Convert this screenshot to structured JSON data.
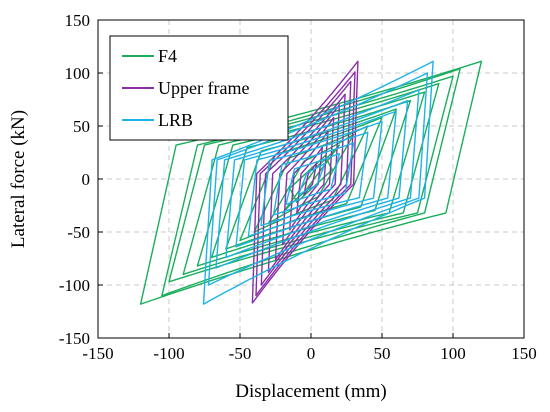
{
  "chart_data": {
    "type": "line",
    "title": "",
    "xlabel": "Displacement (mm)",
    "ylabel": "Lateral force (kN)",
    "xlim": [
      -150,
      150
    ],
    "ylim": [
      -150,
      150
    ],
    "xticks": [
      -150,
      -100,
      -50,
      0,
      50,
      100,
      150
    ],
    "yticks": [
      -150,
      -100,
      -50,
      0,
      50,
      100,
      150
    ],
    "xtick_labels": [
      "-150",
      "-100",
      "-50",
      "0",
      "50",
      "100",
      "150"
    ],
    "ytick_labels": [
      "-150",
      "-100",
      "-50",
      "0",
      "50",
      "100",
      "150"
    ],
    "grid": true,
    "legend_position": "top-left",
    "series": [
      {
        "name": "F4",
        "color": "#1aae5c",
        "loops": [
          {
            "amplitude": 10,
            "peak_force": 22
          },
          {
            "amplitude": 20,
            "peak_force": 32
          },
          {
            "amplitude": 30,
            "peak_force": 42
          },
          {
            "amplitude": 40,
            "peak_force": 50
          },
          {
            "amplitude": 50,
            "peak_force": 58
          },
          {
            "amplitude": 60,
            "peak_force": 66
          },
          {
            "amplitude": 70,
            "peak_force": 74
          },
          {
            "amplitude": 80,
            "peak_force": 82
          },
          {
            "amplitude": 90,
            "peak_force": 90
          },
          {
            "amplitude": 100,
            "peak_force": 97
          },
          {
            "amplitude": 105,
            "peak_force": 104
          },
          {
            "amplitude": 120,
            "peak_force": 111
          }
        ],
        "negative_amplitude_ratio": 1.0,
        "negative_peak_force": [
          -22,
          -32,
          -42,
          -50,
          -58,
          -66,
          -74,
          -82,
          -90,
          -97,
          -110,
          -118
        ],
        "char_strength": 32,
        "unload_width": 25
      },
      {
        "name": "Upper frame",
        "color": "#8a2ea8",
        "loops": [
          {
            "amplitude": 4,
            "peak_force": 15
          },
          {
            "amplitude": 8,
            "peak_force": 30
          },
          {
            "amplitude": 12,
            "peak_force": 45
          },
          {
            "amplitude": 16,
            "peak_force": 58
          },
          {
            "amplitude": 20,
            "peak_force": 70
          },
          {
            "amplitude": 24,
            "peak_force": 80
          },
          {
            "amplitude": 28,
            "peak_force": 92
          },
          {
            "amplitude": 31,
            "peak_force": 101
          },
          {
            "amplitude": 33,
            "peak_force": 111
          }
        ],
        "negative_amplitude_ratio": 1.25,
        "negative_peak_force": [
          -15,
          -32,
          -48,
          -62,
          -76,
          -88,
          -100,
          -110,
          -117
        ],
        "char_strength": 5,
        "unload_width": 3
      },
      {
        "name": "LRB",
        "color": "#1fb2e8",
        "loops": [
          {
            "amplitude": 10,
            "peak_force": 15
          },
          {
            "amplitude": 20,
            "peak_force": 24
          },
          {
            "amplitude": 30,
            "peak_force": 34
          },
          {
            "amplitude": 40,
            "peak_force": 44
          },
          {
            "amplitude": 50,
            "peak_force": 54
          },
          {
            "amplitude": 60,
            "peak_force": 64
          },
          {
            "amplitude": 68,
            "peak_force": 74
          },
          {
            "amplitude": 76,
            "peak_force": 84
          },
          {
            "amplitude": 82,
            "peak_force": 100
          },
          {
            "amplitude": 86,
            "peak_force": 111
          }
        ],
        "negative_amplitude_ratio": 0.88,
        "negative_peak_force": [
          -15,
          -24,
          -34,
          -44,
          -54,
          -64,
          -74,
          -84,
          -100,
          -118
        ],
        "char_strength": 18,
        "unload_width": 6
      }
    ]
  }
}
